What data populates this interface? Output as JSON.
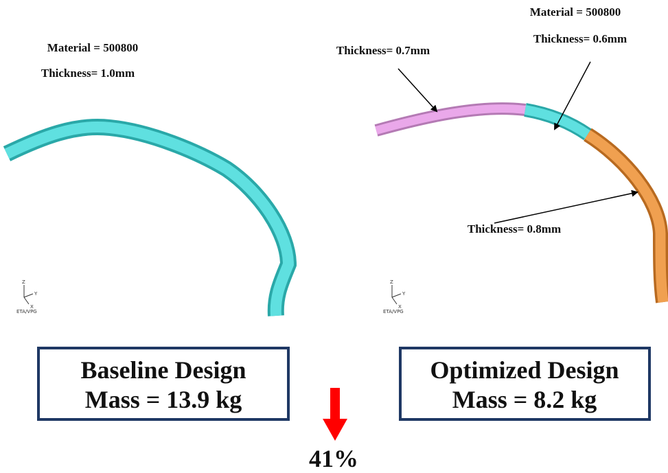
{
  "baseline": {
    "material": "Material = 500800",
    "thickness": "Thickness= 1.0mm",
    "title": "Baseline Design",
    "mass": "Mass = 13.9 kg"
  },
  "optimized": {
    "material": "Material = 500800",
    "thickness_left": "Thickness= 0.7mm",
    "thickness_middle": "Thickness= 0.6mm",
    "thickness_right": "Thickness= 0.8mm",
    "title": "Optimized Design",
    "mass": "Mass = 8.2 kg"
  },
  "triad": {
    "z": "Z",
    "y": "Y",
    "x": "X",
    "logo": "ETA/VPG"
  },
  "reduction": "41%"
}
